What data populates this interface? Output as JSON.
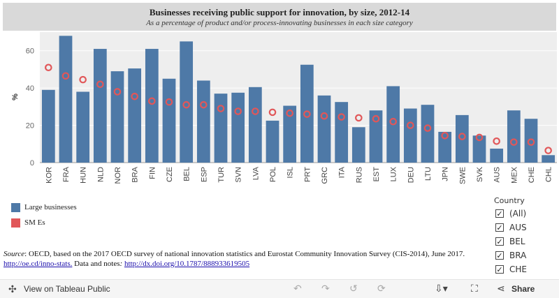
{
  "title": "Businesses receiving public support for innovation, by size, 2012-14",
  "subtitle": "As a percentage of product and/or process-innovating businesses in each size category",
  "chart_data": {
    "type": "bar",
    "ylabel": "%",
    "ylim": [
      0,
      70
    ],
    "yticks": [
      0,
      20,
      40,
      60
    ],
    "grid": true,
    "categories": [
      "KOR",
      "FRA",
      "HUN",
      "NLD",
      "NOR",
      "BRA",
      "FIN",
      "CZE",
      "BEL",
      "ESP",
      "TUR",
      "SVN",
      "LVA",
      "POL",
      "ISL",
      "PRT",
      "GRC",
      "ITA",
      "RUS",
      "EST",
      "LUX",
      "DEU",
      "LTU",
      "JPN",
      "SWE",
      "SVK",
      "AUS",
      "MEX",
      "CHE",
      "CHL"
    ],
    "series": [
      {
        "name": "Large businesses",
        "mark": "bar",
        "color": "#4e79a7",
        "values": [
          39,
          68,
          38,
          61,
          49,
          50.5,
          61,
          45,
          65,
          44,
          37,
          37.5,
          40.5,
          22.5,
          30.5,
          52.5,
          36,
          32.5,
          19,
          28,
          41,
          29,
          31,
          16.5,
          25.5,
          14.5,
          7.5,
          28,
          23.5,
          4
        ]
      },
      {
        "name": "SM Es",
        "mark": "circle",
        "color": "#e15759",
        "values": [
          51,
          46.5,
          44.5,
          42,
          38,
          35.5,
          33,
          32.5,
          31,
          31,
          29,
          27.5,
          27.5,
          27,
          26.5,
          26,
          25,
          24.5,
          24,
          23.5,
          22,
          20,
          18.5,
          14.5,
          14,
          13.5,
          11.5,
          11,
          11,
          6.5
        ]
      }
    ]
  },
  "legend": {
    "items": [
      {
        "label": "Large businesses",
        "color": "#4e79a7"
      },
      {
        "label": "SM Es",
        "color": "#e15759"
      }
    ]
  },
  "filter": {
    "title": "Country",
    "options": [
      "(All)",
      "AUS",
      "BEL",
      "BRA",
      "CHE"
    ],
    "check": "✓"
  },
  "source": {
    "label": "Source",
    "text1": ": OECD, based on the 2017 OECD survey of national innovation statistics and Eurostat Community Innovation Survey (CIS-2014), June 2017. ",
    "link1": "http://oe.cd/inno-stats.",
    "text2": " Data and notes",
    "text3": ": ",
    "link2": "http://dx.doi.org/10.1787/888933619505"
  },
  "toolbar": {
    "view_label": "View on Tableau Public",
    "share_label": "Share"
  }
}
